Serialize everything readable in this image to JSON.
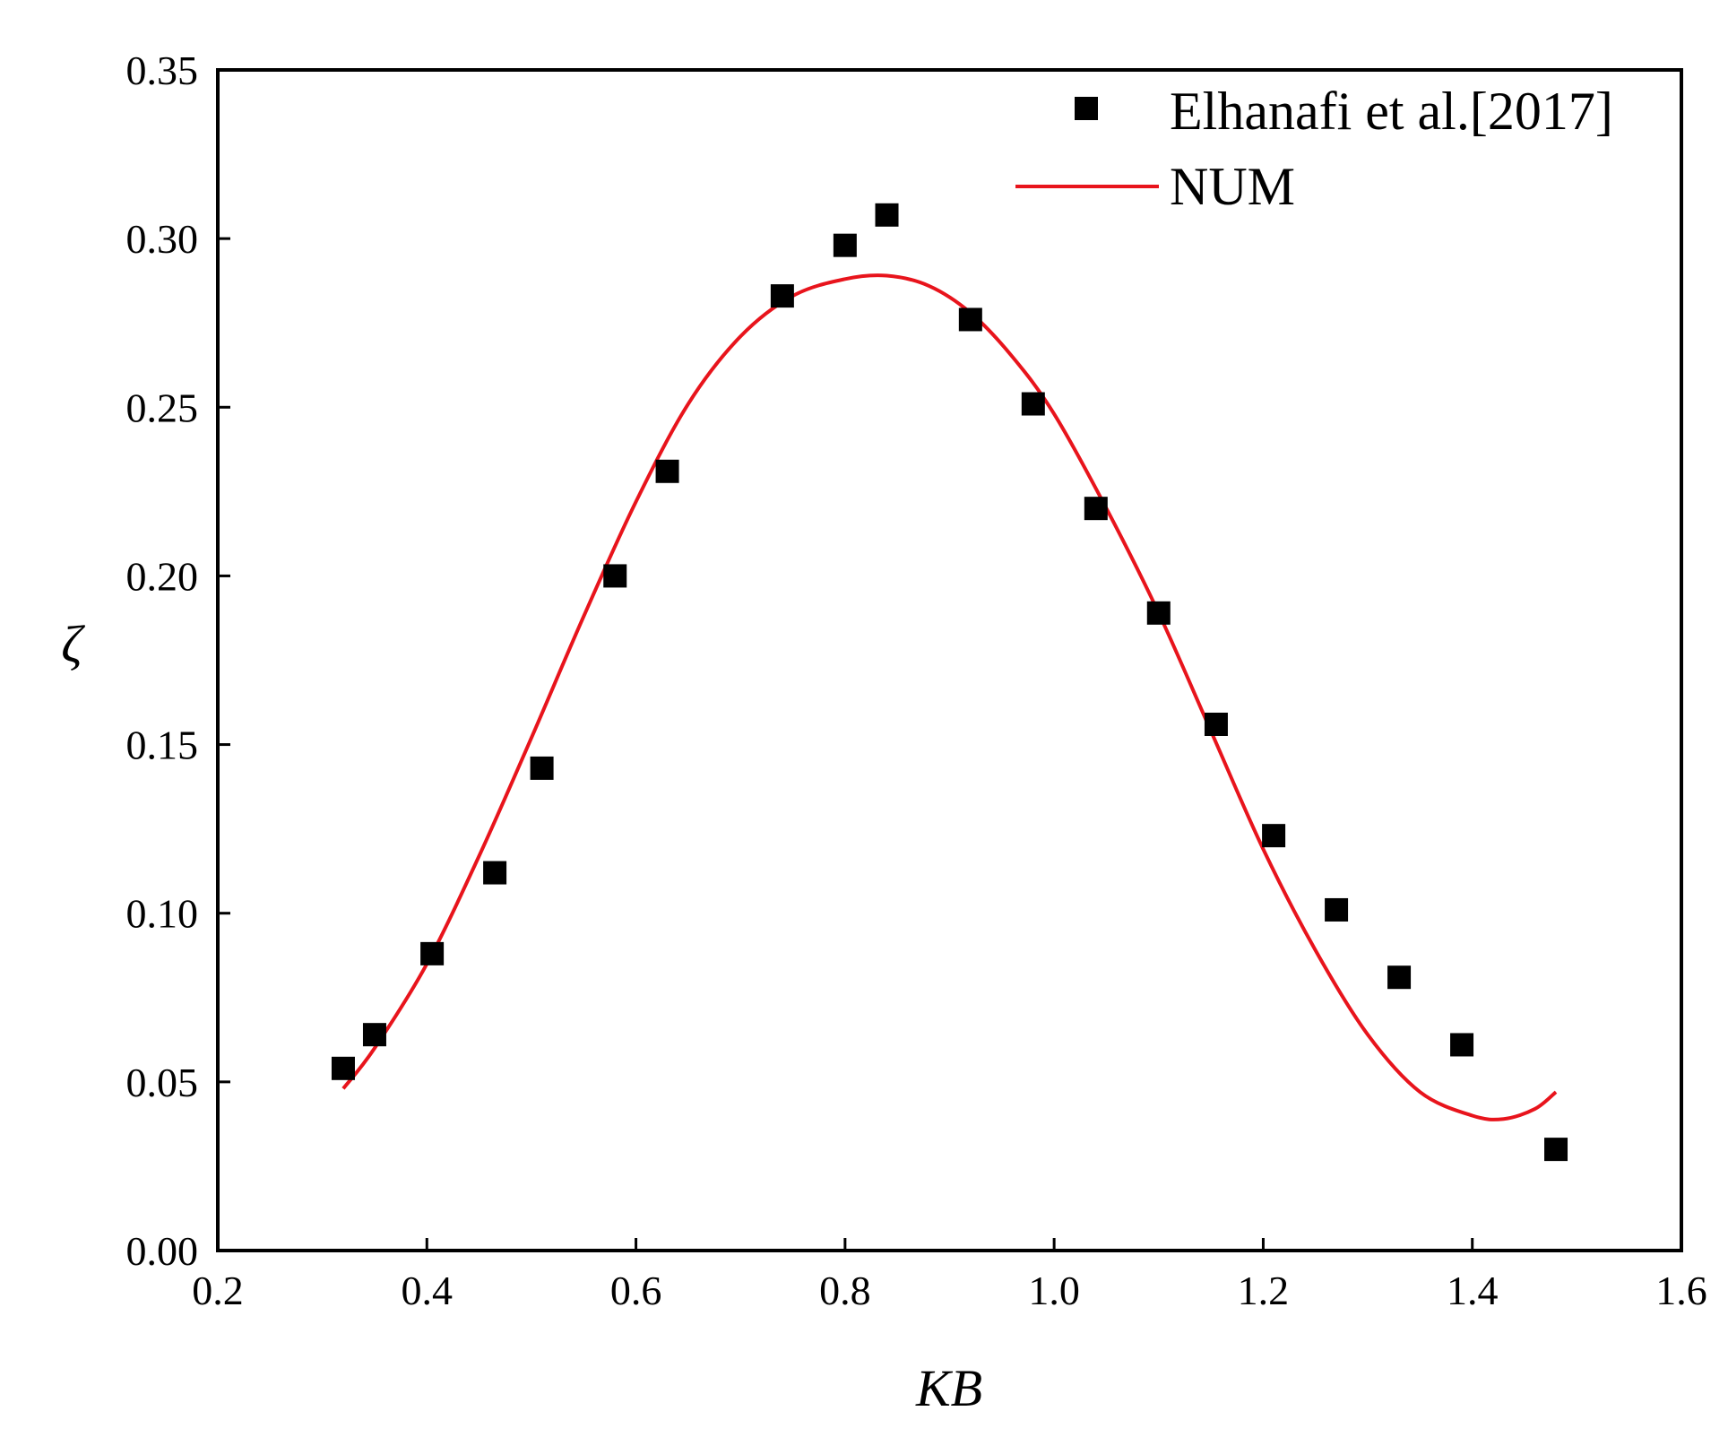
{
  "chart_data": {
    "type": "scatter+line",
    "title": "",
    "xlabel": "KB",
    "ylabel": "ζ",
    "xlim": [
      0.2,
      1.6
    ],
    "ylim": [
      0.0,
      0.35
    ],
    "xticks": [
      0.2,
      0.4,
      0.6,
      0.8,
      1.0,
      1.2,
      1.4,
      1.6
    ],
    "xtick_labels": [
      "0.2",
      "0.4",
      "0.6",
      "0.8",
      "1.0",
      "1.2",
      "1.4",
      "1.6"
    ],
    "yticks": [
      0.0,
      0.05,
      0.1,
      0.15,
      0.2,
      0.25,
      0.3,
      0.35
    ],
    "ytick_labels": [
      "0.00",
      "0.05",
      "0.10",
      "0.15",
      "0.20",
      "0.25",
      "0.30",
      "0.35"
    ],
    "grid": false,
    "legend_position": "top-right",
    "series": [
      {
        "name": "Elhanafi et al.[2017]",
        "kind": "scatter",
        "marker": "square",
        "color": "#000000",
        "x": [
          0.32,
          0.35,
          0.405,
          0.465,
          0.51,
          0.58,
          0.63,
          0.74,
          0.8,
          0.84,
          0.92,
          0.98,
          1.04,
          1.1,
          1.155,
          1.21,
          1.27,
          1.33,
          1.39,
          1.48
        ],
        "y": [
          0.054,
          0.064,
          0.088,
          0.112,
          0.143,
          0.2,
          0.231,
          0.283,
          0.298,
          0.307,
          0.276,
          0.251,
          0.22,
          0.189,
          0.156,
          0.123,
          0.101,
          0.081,
          0.061,
          0.03
        ]
      },
      {
        "name": "NUM",
        "kind": "line",
        "color": "#e8141c",
        "x": [
          0.32,
          0.35,
          0.4,
          0.45,
          0.5,
          0.55,
          0.6,
          0.65,
          0.7,
          0.75,
          0.8,
          0.84,
          0.88,
          0.92,
          0.96,
          1.0,
          1.05,
          1.1,
          1.15,
          1.2,
          1.25,
          1.3,
          1.35,
          1.4,
          1.43,
          1.46,
          1.48
        ],
        "y": [
          0.048,
          0.06,
          0.085,
          0.117,
          0.152,
          0.188,
          0.222,
          0.251,
          0.271,
          0.283,
          0.288,
          0.289,
          0.286,
          0.278,
          0.265,
          0.248,
          0.22,
          0.189,
          0.154,
          0.119,
          0.089,
          0.064,
          0.047,
          0.04,
          0.039,
          0.042,
          0.047
        ]
      }
    ]
  }
}
